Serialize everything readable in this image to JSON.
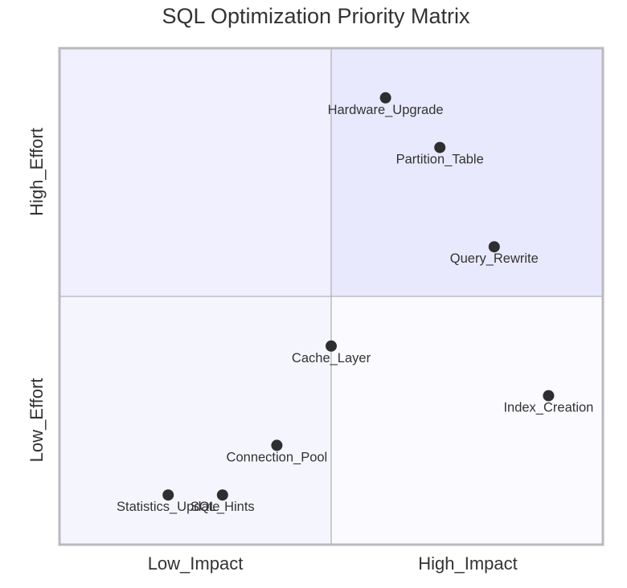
{
  "chart_data": {
    "type": "scatter",
    "title": "SQL Optimization Priority Matrix",
    "quadrant_labels": {
      "x_low": "Low_Impact",
      "x_high": "High_Impact",
      "y_low": "Low_Effort",
      "y_high": "High_Effort"
    },
    "xlim": [
      0,
      1
    ],
    "ylim": [
      0,
      1
    ],
    "x_divider": 0.5,
    "y_divider": 0.5,
    "quadrant_colors": {
      "top_left": "#f0f0ff",
      "top_right": "#e9e9fd",
      "bottom_left": "#f5f5fe",
      "bottom_right": "#fbfbff"
    },
    "frame_color": "#b9b9bf",
    "divider_color": "#b3b3b8",
    "point_color": "#2e2e31",
    "points": [
      {
        "label": "Hardware_Upgrade",
        "x": 0.6,
        "y": 0.9
      },
      {
        "label": "Partition_Table",
        "x": 0.7,
        "y": 0.8
      },
      {
        "label": "Query_Rewrite",
        "x": 0.8,
        "y": 0.6
      },
      {
        "label": "Cache_Layer",
        "x": 0.5,
        "y": 0.4
      },
      {
        "label": "Index_Creation",
        "x": 0.9,
        "y": 0.3
      },
      {
        "label": "Connection_Pool",
        "x": 0.4,
        "y": 0.2
      },
      {
        "label": "Statistics_Update",
        "x": 0.2,
        "y": 0.1
      },
      {
        "label": "SQL_Hints",
        "x": 0.3,
        "y": 0.1
      }
    ]
  }
}
